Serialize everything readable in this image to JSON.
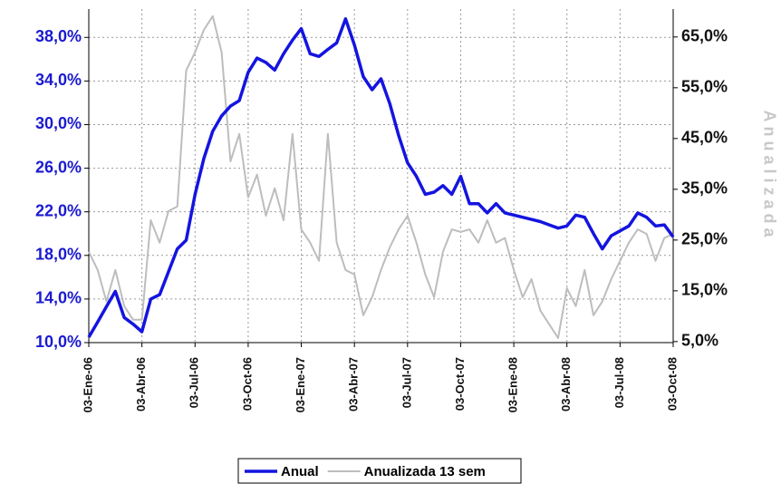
{
  "chart_data": {
    "type": "line",
    "y2label": "Anualizada",
    "categories": [
      "03-Ene-06",
      null,
      null,
      null,
      null,
      null,
      "03-Abr-06",
      null,
      null,
      null,
      null,
      null,
      "03-Jul-06",
      null,
      null,
      null,
      null,
      null,
      "03-Oct-06",
      null,
      null,
      null,
      null,
      null,
      "03-Ene-07",
      null,
      null,
      null,
      null,
      null,
      "03-Abr-07",
      null,
      null,
      null,
      null,
      null,
      "03-Jul-07",
      null,
      null,
      null,
      null,
      null,
      "03-Oct-07",
      null,
      null,
      null,
      null,
      null,
      "03-Ene-08",
      null,
      null,
      null,
      null,
      null,
      "03-Abr-08",
      null,
      null,
      null,
      null,
      null,
      "03-Jul-08",
      null,
      null,
      null,
      null,
      null,
      "03-Oct-08"
    ],
    "series": [
      {
        "name": "Anual",
        "color": "#1414e0",
        "axis": "y",
        "values": [
          10.5,
          11.9,
          13.3,
          14.7,
          12.3,
          11.7,
          11.0,
          14.0,
          14.4,
          16.5,
          18.6,
          19.4,
          23.6,
          26.9,
          29.4,
          30.8,
          31.7,
          32.2,
          34.8,
          36.1,
          35.7,
          35.0,
          36.5,
          37.75,
          38.8,
          36.5,
          36.25,
          36.9,
          37.5,
          39.7,
          37.3,
          34.4,
          33.2,
          34.2,
          31.9,
          29.0,
          26.5,
          25.25,
          23.6,
          23.8,
          24.4,
          23.6,
          25.25,
          22.75,
          22.75,
          21.9,
          22.75,
          21.9,
          21.7,
          21.5,
          21.3,
          21.1,
          20.8,
          20.5,
          20.7,
          21.7,
          21.5,
          20.0,
          18.6,
          19.8,
          20.25,
          20.7,
          21.9,
          21.5,
          20.7,
          20.8,
          19.7
        ]
      },
      {
        "name": "Anualizada 13 sem",
        "color": "#bdbdbd",
        "axis": "y2",
        "values": [
          22.7,
          19.1,
          12.9,
          19.1,
          12.0,
          9.3,
          9.3,
          28.9,
          24.5,
          30.7,
          31.6,
          58.4,
          62.0,
          66.4,
          69.1,
          62.0,
          40.5,
          45.9,
          33.4,
          37.9,
          29.8,
          35.2,
          28.9,
          45.9,
          27.1,
          24.5,
          20.9,
          45.9,
          24.5,
          19.1,
          18.2,
          10.2,
          13.75,
          19.1,
          23.6,
          27.1,
          29.8,
          24.5,
          18.2,
          13.75,
          22.7,
          27.1,
          26.6,
          27.1,
          24.5,
          28.9,
          24.5,
          25.4,
          19.1,
          13.75,
          17.3,
          11.1,
          8.4,
          5.7,
          15.5,
          12.0,
          19.1,
          10.2,
          12.9,
          17.3,
          20.9,
          24.5,
          27.1,
          26.2,
          20.9,
          25.4,
          26.2
        ]
      }
    ],
    "ylim": [
      10,
      40.6
    ],
    "yticks": [
      {
        "value": 10,
        "label": "10,0%"
      },
      {
        "value": 14,
        "label": "14,0%"
      },
      {
        "value": 18,
        "label": "18,0%"
      },
      {
        "value": 22,
        "label": "22,0%"
      },
      {
        "value": 26,
        "label": "26,0%"
      },
      {
        "value": 30,
        "label": "30,0%"
      },
      {
        "value": 34,
        "label": "34,0%"
      },
      {
        "value": 38,
        "label": "38,0%"
      }
    ],
    "y2lim": [
      4.8,
      70.5
    ],
    "y2ticks": [
      {
        "value": 5,
        "label": "5,0%"
      },
      {
        "value": 15,
        "label": "15,0%"
      },
      {
        "value": 25,
        "label": "25,0%"
      },
      {
        "value": 35,
        "label": "35,0%"
      },
      {
        "value": 45,
        "label": "45,0%"
      },
      {
        "value": 55,
        "label": "55,0%"
      },
      {
        "value": 65,
        "label": "65,0%"
      }
    ],
    "grid": true,
    "legend": "bottom"
  }
}
